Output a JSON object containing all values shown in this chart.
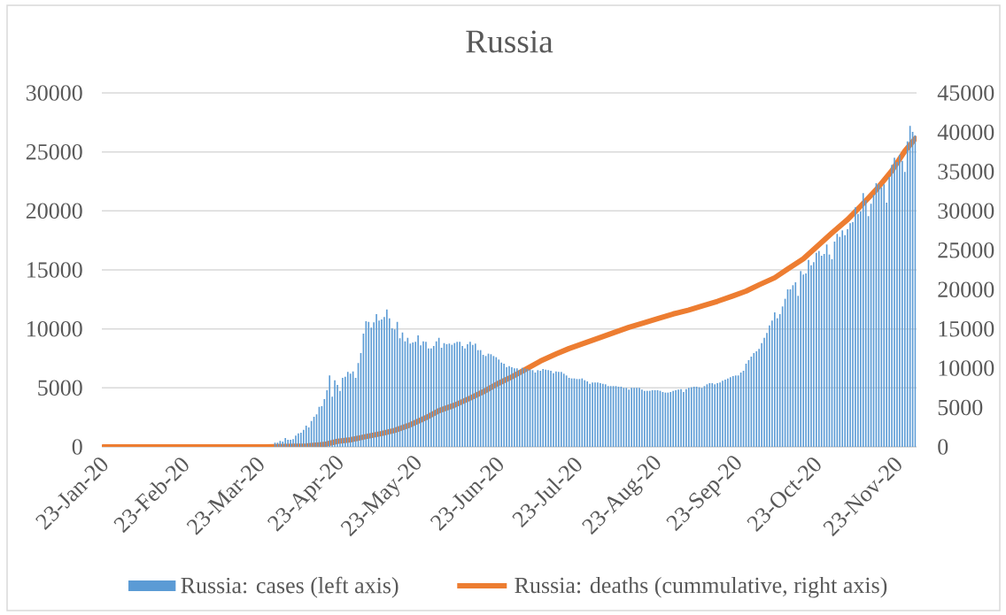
{
  "chart_data": {
    "type": "bar",
    "title": "Russia",
    "x": [
      "2020-01-23",
      "2020-01-24",
      "2020-01-25",
      "2020-01-26",
      "2020-01-27",
      "2020-01-28",
      "2020-01-29",
      "2020-01-30",
      "2020-01-31",
      "2020-02-01",
      "2020-02-02",
      "2020-02-03",
      "2020-02-04",
      "2020-02-05",
      "2020-02-06",
      "2020-02-07",
      "2020-02-08",
      "2020-02-09",
      "2020-02-10",
      "2020-02-11",
      "2020-02-12",
      "2020-02-13",
      "2020-02-14",
      "2020-02-15",
      "2020-02-16",
      "2020-02-17",
      "2020-02-18",
      "2020-02-19",
      "2020-02-20",
      "2020-02-21",
      "2020-02-22",
      "2020-02-23",
      "2020-02-24",
      "2020-02-25",
      "2020-02-26",
      "2020-02-27",
      "2020-02-28",
      "2020-02-29",
      "2020-03-01",
      "2020-03-02",
      "2020-03-03",
      "2020-03-04",
      "2020-03-05",
      "2020-03-06",
      "2020-03-07",
      "2020-03-08",
      "2020-03-09",
      "2020-03-10",
      "2020-03-11",
      "2020-03-12",
      "2020-03-13",
      "2020-03-14",
      "2020-03-15",
      "2020-03-16",
      "2020-03-17",
      "2020-03-18",
      "2020-03-19",
      "2020-03-20",
      "2020-03-21",
      "2020-03-22",
      "2020-03-23",
      "2020-03-24",
      "2020-03-25",
      "2020-03-26",
      "2020-03-27",
      "2020-03-28",
      "2020-03-29",
      "2020-03-30",
      "2020-03-31",
      "2020-04-01",
      "2020-04-02",
      "2020-04-03",
      "2020-04-04",
      "2020-04-05",
      "2020-04-06",
      "2020-04-07",
      "2020-04-08",
      "2020-04-09",
      "2020-04-10",
      "2020-04-11",
      "2020-04-12",
      "2020-04-13",
      "2020-04-14",
      "2020-04-15",
      "2020-04-16",
      "2020-04-17",
      "2020-04-18",
      "2020-04-19",
      "2020-04-20",
      "2020-04-21",
      "2020-04-22",
      "2020-04-23",
      "2020-04-24",
      "2020-04-25",
      "2020-04-26",
      "2020-04-27",
      "2020-04-28",
      "2020-04-29",
      "2020-04-30",
      "2020-05-01",
      "2020-05-02",
      "2020-05-03",
      "2020-05-04",
      "2020-05-05",
      "2020-05-06",
      "2020-05-07",
      "2020-05-08",
      "2020-05-09",
      "2020-05-10",
      "2020-05-11",
      "2020-05-12",
      "2020-05-13",
      "2020-05-14",
      "2020-05-15",
      "2020-05-16",
      "2020-05-17",
      "2020-05-18",
      "2020-05-19",
      "2020-05-20",
      "2020-05-21",
      "2020-05-22",
      "2020-05-23",
      "2020-05-24",
      "2020-05-25",
      "2020-05-26",
      "2020-05-27",
      "2020-05-28",
      "2020-05-29",
      "2020-05-30",
      "2020-05-31",
      "2020-06-01",
      "2020-06-02",
      "2020-06-03",
      "2020-06-04",
      "2020-06-05",
      "2020-06-06",
      "2020-06-07",
      "2020-06-08",
      "2020-06-09",
      "2020-06-10",
      "2020-06-11",
      "2020-06-12",
      "2020-06-13",
      "2020-06-14",
      "2020-06-15",
      "2020-06-16",
      "2020-06-17",
      "2020-06-18",
      "2020-06-19",
      "2020-06-20",
      "2020-06-21",
      "2020-06-22",
      "2020-06-23",
      "2020-06-24",
      "2020-06-25",
      "2020-06-26",
      "2020-06-27",
      "2020-06-28",
      "2020-06-29",
      "2020-06-30",
      "2020-07-01",
      "2020-07-02",
      "2020-07-03",
      "2020-07-04",
      "2020-07-05",
      "2020-07-06",
      "2020-07-07",
      "2020-07-08",
      "2020-07-09",
      "2020-07-10",
      "2020-07-11",
      "2020-07-12",
      "2020-07-13",
      "2020-07-14",
      "2020-07-15",
      "2020-07-16",
      "2020-07-17",
      "2020-07-18",
      "2020-07-19",
      "2020-07-20",
      "2020-07-21",
      "2020-07-22",
      "2020-07-23",
      "2020-07-24",
      "2020-07-25",
      "2020-07-26",
      "2020-07-27",
      "2020-07-28",
      "2020-07-29",
      "2020-07-30",
      "2020-07-31",
      "2020-08-01",
      "2020-08-02",
      "2020-08-03",
      "2020-08-04",
      "2020-08-05",
      "2020-08-06",
      "2020-08-07",
      "2020-08-08",
      "2020-08-09",
      "2020-08-10",
      "2020-08-11",
      "2020-08-12",
      "2020-08-13",
      "2020-08-14",
      "2020-08-15",
      "2020-08-16",
      "2020-08-17",
      "2020-08-18",
      "2020-08-19",
      "2020-08-20",
      "2020-08-21",
      "2020-08-22",
      "2020-08-23",
      "2020-08-24",
      "2020-08-25",
      "2020-08-26",
      "2020-08-27",
      "2020-08-28",
      "2020-08-29",
      "2020-08-30",
      "2020-08-31",
      "2020-09-01",
      "2020-09-02",
      "2020-09-03",
      "2020-09-04",
      "2020-09-05",
      "2020-09-06",
      "2020-09-07",
      "2020-09-08",
      "2020-09-09",
      "2020-09-10",
      "2020-09-11",
      "2020-09-12",
      "2020-09-13",
      "2020-09-14",
      "2020-09-15",
      "2020-09-16",
      "2020-09-17",
      "2020-09-18",
      "2020-09-19",
      "2020-09-20",
      "2020-09-21",
      "2020-09-22",
      "2020-09-23",
      "2020-09-24",
      "2020-09-25",
      "2020-09-26",
      "2020-09-27",
      "2020-09-28",
      "2020-09-29",
      "2020-09-30",
      "2020-10-01",
      "2020-10-02",
      "2020-10-03",
      "2020-10-04",
      "2020-10-05",
      "2020-10-06",
      "2020-10-07",
      "2020-10-08",
      "2020-10-09",
      "2020-10-10",
      "2020-10-11",
      "2020-10-12",
      "2020-10-13",
      "2020-10-14",
      "2020-10-15",
      "2020-10-16",
      "2020-10-17",
      "2020-10-18",
      "2020-10-19",
      "2020-10-20",
      "2020-10-21",
      "2020-10-22",
      "2020-10-23",
      "2020-10-24",
      "2020-10-25",
      "2020-10-26",
      "2020-10-27",
      "2020-10-28",
      "2020-10-29",
      "2020-10-30",
      "2020-10-31",
      "2020-11-01",
      "2020-11-02",
      "2020-11-03",
      "2020-11-04",
      "2020-11-05",
      "2020-11-06",
      "2020-11-07",
      "2020-11-08",
      "2020-11-09",
      "2020-11-10",
      "2020-11-11",
      "2020-11-12",
      "2020-11-13",
      "2020-11-14",
      "2020-11-15",
      "2020-11-16",
      "2020-11-17",
      "2020-11-18",
      "2020-11-19",
      "2020-11-20",
      "2020-11-21",
      "2020-11-22",
      "2020-11-23",
      "2020-11-24",
      "2020-11-25",
      "2020-11-26",
      "2020-11-27",
      "2020-11-28",
      "2020-11-29",
      "2020-11-30"
    ],
    "xlim": [
      "2020-01-22T12:00",
      "2020-11-30T12:00"
    ],
    "xticks": [
      {
        "value": "2020-01-23",
        "label": "23-Jan-20"
      },
      {
        "value": "2020-02-23",
        "label": "23-Feb-20"
      },
      {
        "value": "2020-03-23",
        "label": "23-Mar-20"
      },
      {
        "value": "2020-04-23",
        "label": "23-Apr-20"
      },
      {
        "value": "2020-05-23",
        "label": "23-May-20"
      },
      {
        "value": "2020-06-23",
        "label": "23-Jun-20"
      },
      {
        "value": "2020-07-23",
        "label": "23-Jul-20"
      },
      {
        "value": "2020-08-23",
        "label": "23-Aug-20"
      },
      {
        "value": "2020-09-23",
        "label": "23-Sep-20"
      },
      {
        "value": "2020-10-23",
        "label": "23-Oct-20"
      },
      {
        "value": "2020-11-23",
        "label": "23-Nov-20"
      }
    ],
    "ylim": [
      0,
      30000
    ],
    "yticks": [
      0,
      5000,
      10000,
      15000,
      20000,
      25000,
      30000
    ],
    "y2lim": [
      0,
      45000
    ],
    "y2ticks": [
      0,
      5000,
      10000,
      15000,
      20000,
      25000,
      30000,
      35000,
      40000,
      45000
    ],
    "grid": "y",
    "legend": "bottom",
    "series": [
      {
        "name": "Russia: cases (left axis)",
        "color": "#5b9bd5",
        "values": [
          0,
          0,
          0,
          0,
          0,
          0,
          0,
          0,
          0,
          0,
          0,
          0,
          0,
          0,
          0,
          0,
          0,
          0,
          0,
          0,
          0,
          0,
          0,
          0,
          0,
          0,
          0,
          0,
          0,
          0,
          0,
          0,
          0,
          0,
          0,
          0,
          0,
          0,
          0,
          0,
          0,
          0,
          0,
          0,
          0,
          0,
          0,
          0,
          0,
          0,
          0,
          0,
          0,
          0,
          0,
          0,
          null,
          null,
          null,
          null,
          null,
          null,
          null,
          null,
          null,
          null,
          350,
          350,
          500,
          450,
          750,
          600,
          600,
          650,
          950,
          1150,
          1200,
          1450,
          1800,
          1650,
          2200,
          2550,
          2750,
          3400,
          3450,
          4050,
          4800,
          6050,
          4250,
          5650,
          5250,
          4750,
          5850,
          5950,
          6350,
          6200,
          6400,
          5850,
          7100,
          7950,
          9600,
          10650,
          10600,
          10100,
          10550,
          11250,
          10700,
          10800,
          11000,
          11650,
          10900,
          10050,
          9950,
          10600,
          9200,
          9700,
          8950,
          9250,
          8750,
          8850,
          8900,
          9450,
          8600,
          8950,
          8900,
          8350,
          8350,
          8550,
          8950,
          9250,
          8400,
          8800,
          8700,
          8750,
          8650,
          8800,
          8900,
          8900,
          8550,
          8350,
          8700,
          8900,
          8650,
          8750,
          8200,
          8200,
          7800,
          7700,
          7900,
          7850,
          7700,
          7600,
          7400,
          7150,
          7050,
          6750,
          6850,
          6750,
          6650,
          6650,
          6500,
          6700,
          6650,
          6600,
          6550,
          6500,
          6300,
          6500,
          6450,
          6600,
          6550,
          6500,
          6450,
          6250,
          6400,
          6350,
          6350,
          6200,
          6050,
          5850,
          5800,
          5800,
          5750,
          5750,
          5800,
          5650,
          5550,
          5350,
          5450,
          5450,
          5450,
          5400,
          5350,
          5300,
          5150,
          5150,
          5150,
          5150,
          5100,
          5100,
          5000,
          5000,
          4850,
          5000,
          5000,
          5000,
          5000,
          4850,
          4750,
          4750,
          4750,
          4800,
          4800,
          4800,
          4750,
          4650,
          4600,
          4600,
          4650,
          4750,
          4800,
          4850,
          4900,
          4650,
          4900,
          5000,
          5050,
          5100,
          5100,
          5050,
          5000,
          5150,
          5300,
          5400,
          5400,
          5300,
          5400,
          5450,
          5600,
          5700,
          5800,
          5900,
          6000,
          6050,
          6050,
          6300,
          6450,
          7050,
          7350,
          7650,
          7950,
          8100,
          8300,
          8800,
          9250,
          9650,
          10300,
          10700,
          11400,
          10900,
          11250,
          11900,
          12550,
          13350,
          13350,
          13700,
          13950,
          12800,
          14900,
          14600,
          14700,
          15850,
          15400,
          15650,
          16450,
          16600,
          16200,
          16350,
          17150,
          16300,
          15900,
          17400,
          18050,
          17800,
          18350,
          17950,
          18450,
          18950,
          19050,
          20300,
          19750,
          19950,
          21500,
          20900,
          19550,
          20600,
          21350,
          22350,
          22250,
          22000,
          22250,
          20700,
          22850,
          23900,
          24500,
          24150,
          24750,
          24250,
          23300,
          25900,
          27200,
          26700,
          26400
        ]
      },
      {
        "name": "Russia: deaths (cummulative, right axis)",
        "type": "line",
        "axis": "y2",
        "color": "#ed7d31",
        "x": [
          "2020-01-23",
          "2020-03-25",
          "2020-04-10",
          "2020-04-17",
          "2020-04-22",
          "2020-04-27",
          "2020-05-03",
          "2020-05-09",
          "2020-05-14",
          "2020-05-20",
          "2020-05-26",
          "2020-05-31",
          "2020-06-06",
          "2020-06-12",
          "2020-06-17",
          "2020-06-23",
          "2020-06-28",
          "2020-07-03",
          "2020-07-09",
          "2020-07-15",
          "2020-07-20",
          "2020-07-26",
          "2020-08-01",
          "2020-08-06",
          "2020-08-12",
          "2020-08-18",
          "2020-08-23",
          "2020-08-29",
          "2020-09-04",
          "2020-09-09",
          "2020-09-15",
          "2020-09-21",
          "2020-09-26",
          "2020-10-01",
          "2020-10-07",
          "2020-10-12",
          "2020-10-18",
          "2020-10-23",
          "2020-10-29",
          "2020-11-04",
          "2020-11-09",
          "2020-11-15",
          "2020-11-21",
          "2020-11-26",
          "2020-11-30"
        ],
        "values": [
          0,
          0,
          100,
          300,
          700,
          900,
          1300,
          1700,
          2100,
          2800,
          3700,
          4600,
          5300,
          6200,
          7000,
          8100,
          8900,
          9800,
          10900,
          11800,
          12500,
          13200,
          13900,
          14500,
          15200,
          15800,
          16300,
          16900,
          17400,
          17900,
          18500,
          19200,
          19800,
          20600,
          21500,
          22600,
          23900,
          25400,
          27200,
          28900,
          30600,
          32700,
          35100,
          37600,
          39200
        ]
      }
    ]
  }
}
